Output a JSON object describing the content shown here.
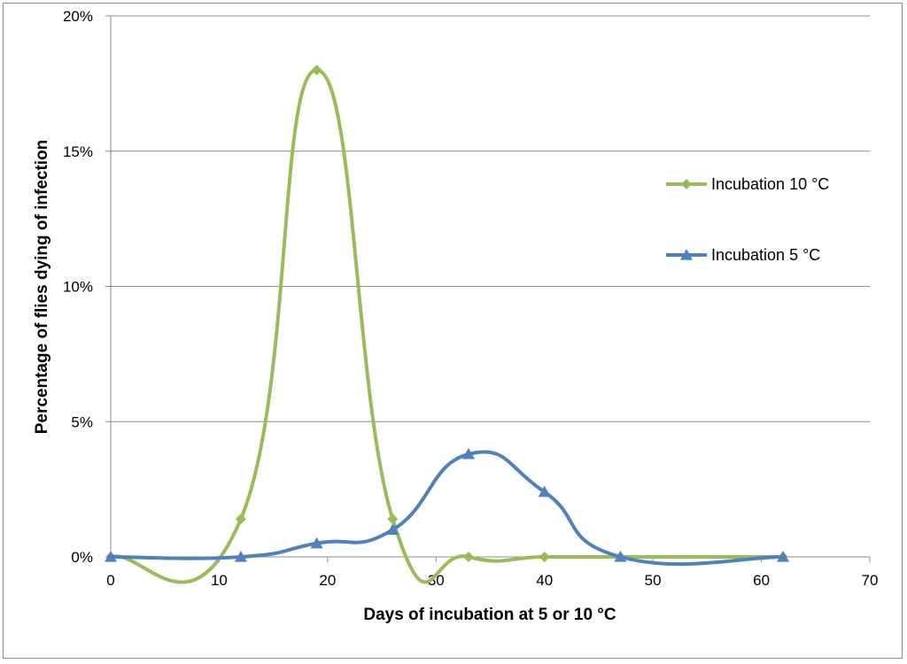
{
  "chart_data": {
    "type": "line",
    "title": "",
    "xlabel": "Days of incubation at 5 or 10  °C",
    "ylabel": "Percentage of  flies dying of infection",
    "xlim": [
      0,
      70
    ],
    "ylim": [
      0,
      20
    ],
    "x_ticks": [
      0,
      10,
      20,
      30,
      40,
      50,
      60,
      70
    ],
    "y_ticks": [
      0,
      5,
      10,
      15,
      20
    ],
    "y_tick_suffix": "%",
    "grid": "horizontal",
    "legend_position": "right",
    "series": [
      {
        "name": "Incubation 10 °C",
        "marker": "diamond",
        "color": "#9BBB59",
        "x": [
          0,
          12,
          19,
          26,
          33,
          40,
          47,
          62
        ],
        "y": [
          0,
          1.4,
          18.0,
          1.4,
          0,
          0,
          0,
          0
        ]
      },
      {
        "name": "Incubation 5 °C",
        "marker": "triangle",
        "color": "#4F81BD",
        "x": [
          0,
          12,
          19,
          26,
          33,
          40,
          47,
          62
        ],
        "y": [
          0,
          0,
          0.5,
          1.0,
          3.8,
          2.4,
          0,
          0
        ]
      }
    ]
  }
}
